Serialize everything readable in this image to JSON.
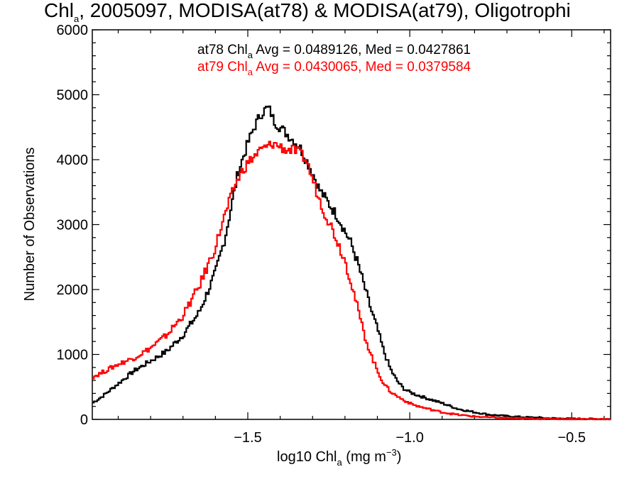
{
  "chart_data": {
    "type": "line",
    "title": {
      "base": "Chl",
      "sub": "a",
      "rest": ", 2005097, MODISA(at78) & MODISA(at79), Oligotrophi"
    },
    "xlabel": {
      "base": "log10 Chl",
      "sub": "a",
      "rest": " (mg m",
      "sup": "−3",
      "close": ")"
    },
    "ylabel": "Number of Observations",
    "xlim": [
      -1.98,
      -0.38
    ],
    "ylim": [
      0,
      6000
    ],
    "xticks": [
      -1.5,
      -1.0,
      -0.5
    ],
    "xtick_labels": [
      "−1.5",
      "−1.0",
      "−0.5"
    ],
    "yticks": [
      0,
      1000,
      2000,
      3000,
      4000,
      5000,
      6000
    ],
    "ytick_labels": [
      "0",
      "1000",
      "2000",
      "3000",
      "4000",
      "5000",
      "6000"
    ],
    "grid": false,
    "legend_placement": "top-center",
    "series": [
      {
        "id": "at78",
        "color": "#000000",
        "legend": {
          "pre": "at78 Chl",
          "sub": "a",
          "post": " Avg = 0.0489126, Med = 0.0427861"
        },
        "x": [
          -1.98,
          -1.95,
          -1.9,
          -1.85,
          -1.8,
          -1.75,
          -1.7,
          -1.65,
          -1.6,
          -1.57,
          -1.55,
          -1.53,
          -1.5,
          -1.48,
          -1.46,
          -1.44,
          -1.43,
          -1.42,
          -1.4,
          -1.38,
          -1.36,
          -1.34,
          -1.32,
          -1.3,
          -1.28,
          -1.26,
          -1.24,
          -1.22,
          -1.2,
          -1.18,
          -1.16,
          -1.14,
          -1.12,
          -1.1,
          -1.08,
          -1.06,
          -1.04,
          -1.02,
          -1.0,
          -0.98,
          -0.95,
          -0.9,
          -0.85,
          -0.8,
          -0.75,
          -0.7,
          -0.65,
          -0.6,
          -0.55,
          -0.5,
          -0.45,
          -0.4,
          -0.38
        ],
        "y": [
          250,
          350,
          550,
          750,
          900,
          1050,
          1300,
          1650,
          2250,
          2800,
          3300,
          3800,
          4250,
          4500,
          4700,
          4800,
          4750,
          4600,
          4500,
          4400,
          4300,
          4200,
          4000,
          3800,
          3550,
          3400,
          3250,
          3100,
          2900,
          2700,
          2400,
          2050,
          1700,
          1400,
          1050,
          780,
          600,
          480,
          420,
          380,
          330,
          250,
          160,
          110,
          70,
          50,
          35,
          25,
          15,
          10,
          8,
          5,
          5
        ]
      },
      {
        "id": "at79",
        "color": "#ff0000",
        "legend": {
          "pre": "at79 Chl",
          "sub": "a",
          "post": " Avg = 0.0430065, Med = 0.0379584"
        },
        "x": [
          -1.98,
          -1.95,
          -1.9,
          -1.85,
          -1.8,
          -1.75,
          -1.7,
          -1.65,
          -1.6,
          -1.58,
          -1.56,
          -1.54,
          -1.52,
          -1.5,
          -1.48,
          -1.46,
          -1.44,
          -1.42,
          -1.4,
          -1.38,
          -1.36,
          -1.34,
          -1.32,
          -1.3,
          -1.28,
          -1.26,
          -1.24,
          -1.22,
          -1.2,
          -1.18,
          -1.16,
          -1.14,
          -1.12,
          -1.1,
          -1.08,
          -1.06,
          -1.04,
          -1.02,
          -1.0,
          -0.98,
          -0.95,
          -0.9,
          -0.85,
          -0.8,
          -0.75,
          -0.7,
          -0.65,
          -0.6,
          -0.55,
          -0.5,
          -0.45,
          -0.4,
          -0.38
        ],
        "y": [
          650,
          720,
          850,
          950,
          1100,
          1300,
          1600,
          2050,
          2650,
          3000,
          3300,
          3600,
          3800,
          3950,
          4050,
          4150,
          4200,
          4250,
          4200,
          4150,
          4150,
          4100,
          4000,
          3700,
          3400,
          3150,
          2950,
          2700,
          2450,
          2100,
          1700,
          1300,
          1000,
          750,
          550,
          430,
          360,
          300,
          250,
          210,
          170,
          110,
          70,
          45,
          30,
          20,
          15,
          10,
          8,
          5,
          5,
          5,
          5
        ]
      }
    ]
  }
}
